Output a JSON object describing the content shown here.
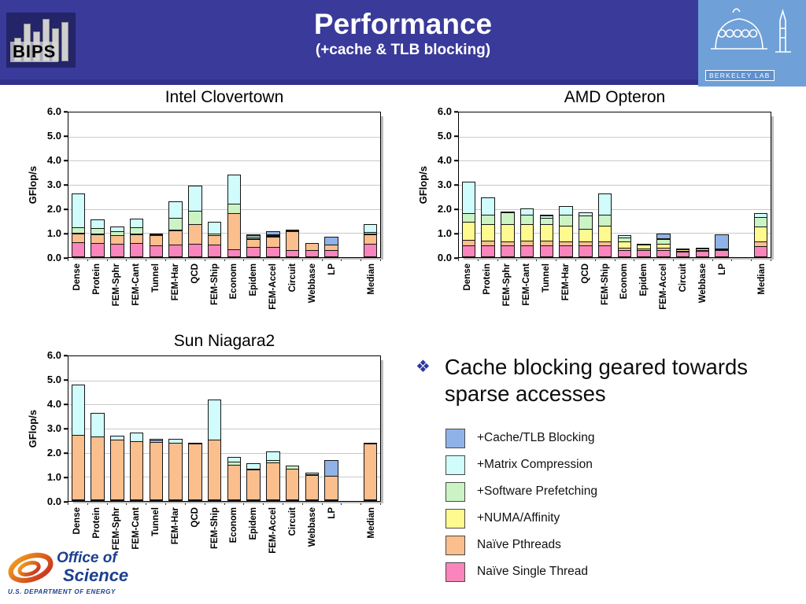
{
  "header": {
    "title": "Performance",
    "subtitle": "(+cache & TLB blocking)",
    "bips_label": "BIPS",
    "berkeley_label": "BERKELEY LAB",
    "bg": "#3a3a9a"
  },
  "bullet": {
    "marker": "❖",
    "text": "Cache blocking geared towards sparse accesses"
  },
  "legend": {
    "items": [
      {
        "label": "+Cache/TLB Blocking",
        "color": "#8FB3E8"
      },
      {
        "label": "+Matrix Compression",
        "color": "#D0FCFB"
      },
      {
        "label": "+Software Prefetching",
        "color": "#CBF3C4"
      },
      {
        "label": "+NUMA/Affinity",
        "color": "#FFFA8F"
      },
      {
        "label": "Naïve Pthreads",
        "color": "#FBBE8D"
      },
      {
        "label": "Naïve Single Thread",
        "color": "#FA85BC"
      }
    ]
  },
  "footer": {
    "office_line1": "Office of",
    "office_line2": "Science",
    "dept": "U.S. DEPARTMENT OF ENERGY"
  },
  "chart_data": [
    {
      "type": "bar",
      "stacked": true,
      "title": "Intel Clovertown",
      "ylabel": "GFlop/s",
      "ylim": [
        0,
        6
      ],
      "grid": true,
      "legend_position": "none",
      "yticks": [
        "6.0",
        "5.0",
        "4.0",
        "3.0",
        "2.0",
        "1.0",
        "0.0"
      ],
      "categories": [
        "Dense",
        "Protein",
        "FEM-Sphr",
        "FEM-Cant",
        "Tunnel",
        "FEM-Har",
        "QCD",
        "FEM-Ship",
        "Econom",
        "Epidem",
        "FEM-Accel",
        "Circuit",
        "Webbase",
        "LP",
        "Median"
      ],
      "gap_before_category": "Median",
      "series_note": "values are stacked segment sizes in GFlop/s, listed bottom-to-top",
      "series": [
        {
          "name": "Naïve Single Thread",
          "color": "#FA85BC",
          "values": [
            0.6,
            0.58,
            0.55,
            0.58,
            0.5,
            0.52,
            0.55,
            0.52,
            0.32,
            0.42,
            0.42,
            0.3,
            0.28,
            0.3,
            0.55
          ]
        },
        {
          "name": "Naïve Pthreads",
          "color": "#FBBE8D",
          "values": [
            0.42,
            0.42,
            0.4,
            0.42,
            0.45,
            0.63,
            0.85,
            0.43,
            1.53,
            0.38,
            0.48,
            0.8,
            0.34,
            0.25,
            0.45
          ]
        },
        {
          "name": "+NUMA/Affinity",
          "color": "#FFFA8F",
          "values": [
            0.04,
            0.02,
            0.02,
            0.02,
            0.02,
            0.04,
            0.02,
            0.03,
            0.02,
            0.03,
            0.04,
            0.02,
            0.0,
            0.0,
            0.03
          ]
        },
        {
          "name": "+Software Prefetching",
          "color": "#CBF3C4",
          "values": [
            0.28,
            0.28,
            0.2,
            0.3,
            0.08,
            0.56,
            0.58,
            0.1,
            0.43,
            0.12,
            0.09,
            0.03,
            0.0,
            0.0,
            0.1
          ]
        },
        {
          "name": "+Matrix Compression",
          "color": "#D0FCFB",
          "values": [
            1.45,
            0.4,
            0.23,
            0.41,
            0.08,
            0.7,
            1.1,
            0.52,
            1.25,
            0.1,
            0.07,
            0.05,
            0.02,
            0.0,
            0.38
          ]
        },
        {
          "name": "+Cache/TLB Blocking",
          "color": "#8FB3E8",
          "values": [
            0.0,
            0.0,
            0.0,
            0.0,
            0.0,
            0.0,
            0.0,
            0.0,
            0.0,
            0.1,
            0.17,
            0.02,
            0.0,
            0.4,
            0.0
          ]
        }
      ]
    },
    {
      "type": "bar",
      "stacked": true,
      "title": "AMD Opteron",
      "ylabel": "GFlop/s",
      "ylim": [
        0,
        6
      ],
      "grid": true,
      "legend_position": "none",
      "yticks": [
        "6.0",
        "5.0",
        "4.0",
        "3.0",
        "2.0",
        "1.0",
        "0.0"
      ],
      "categories": [
        "Dense",
        "Protein",
        "FEM-Sphr",
        "FEM-Cant",
        "Tunnel",
        "FEM-Har",
        "QCD",
        "FEM-Ship",
        "Econom",
        "Epidem",
        "FEM-Accel",
        "Circuit",
        "Webbase",
        "LP",
        "Median"
      ],
      "gap_before_category": "Median",
      "series_note": "values are stacked segment sizes in GFlop/s, listed bottom-to-top",
      "series": [
        {
          "name": "Naïve Single Thread",
          "color": "#FA85BC",
          "values": [
            0.5,
            0.5,
            0.5,
            0.5,
            0.5,
            0.5,
            0.48,
            0.5,
            0.3,
            0.3,
            0.3,
            0.22,
            0.25,
            0.28,
            0.45
          ]
        },
        {
          "name": "Naïve Pthreads",
          "color": "#FBBE8D",
          "values": [
            0.25,
            0.22,
            0.2,
            0.22,
            0.22,
            0.2,
            0.2,
            0.2,
            0.15,
            0.1,
            0.12,
            0.08,
            0.08,
            0.1,
            0.23
          ]
        },
        {
          "name": "+NUMA/Affinity",
          "color": "#FFFA8F",
          "values": [
            0.8,
            0.73,
            0.75,
            0.73,
            0.73,
            0.7,
            0.57,
            0.7,
            0.3,
            0.22,
            0.23,
            0.12,
            0.12,
            0.04,
            0.67
          ]
        },
        {
          "name": "+Software Prefetching",
          "color": "#CBF3C4",
          "values": [
            0.4,
            0.45,
            0.55,
            0.45,
            0.3,
            0.5,
            0.6,
            0.5,
            0.2,
            0.03,
            0.25,
            0.03,
            0.03,
            0.0,
            0.45
          ]
        },
        {
          "name": "+Matrix Compression",
          "color": "#D0FCFB",
          "values": [
            1.35,
            0.75,
            0.05,
            0.3,
            0.15,
            0.4,
            0.2,
            0.9,
            0.15,
            0.02,
            0.02,
            0.03,
            0.02,
            0.0,
            0.2
          ]
        },
        {
          "name": "+Cache/TLB Blocking",
          "color": "#8FB3E8",
          "values": [
            0.0,
            0.0,
            0.0,
            0.0,
            0.1,
            0.0,
            0.0,
            0.0,
            0.0,
            0.0,
            0.25,
            0.02,
            0.02,
            0.63,
            0.05
          ]
        }
      ]
    },
    {
      "type": "bar",
      "stacked": true,
      "title": "Sun Niagara2",
      "ylabel": "GFlop/s",
      "ylim": [
        0,
        6
      ],
      "grid": true,
      "legend_position": "none",
      "yticks": [
        "6.0",
        "5.0",
        "4.0",
        "3.0",
        "2.0",
        "1.0",
        "0.0"
      ],
      "categories": [
        "Dense",
        "Protein",
        "FEM-Sphr",
        "FEM-Cant",
        "Tunnel",
        "FEM-Har",
        "QCD",
        "FEM-Ship",
        "Econom",
        "Epidem",
        "FEM-Accel",
        "Circuit",
        "Webbase",
        "LP",
        "Median"
      ],
      "gap_before_category": "Median",
      "series_note": "values are stacked segment sizes in GFlop/s, listed bottom-to-top",
      "series": [
        {
          "name": "Naïve Single Thread",
          "color": "#FA85BC",
          "values": [
            0.06,
            0.06,
            0.06,
            0.06,
            0.06,
            0.06,
            0.06,
            0.06,
            0.06,
            0.06,
            0.06,
            0.06,
            0.06,
            0.06,
            0.06
          ]
        },
        {
          "name": "Naïve Pthreads",
          "color": "#FBBE8D",
          "values": [
            2.7,
            2.62,
            2.5,
            2.42,
            2.4,
            2.36,
            2.34,
            2.5,
            1.46,
            1.29,
            1.56,
            1.32,
            1.06,
            1.02,
            2.34
          ]
        },
        {
          "name": "+NUMA/Affinity",
          "color": "#FFFA8F",
          "values": [
            0.0,
            0.0,
            0.0,
            0.0,
            0.0,
            0.0,
            0.0,
            0.0,
            0.0,
            0.0,
            0.0,
            0.0,
            0.0,
            0.0,
            0.0
          ]
        },
        {
          "name": "+Software Prefetching",
          "color": "#CBF3C4",
          "values": [
            0.0,
            0.0,
            0.0,
            0.03,
            0.0,
            0.0,
            0.0,
            0.0,
            0.18,
            0.05,
            0.16,
            0.15,
            0.08,
            0.0,
            0.05
          ]
        },
        {
          "name": "+Matrix Compression",
          "color": "#D0FCFB",
          "values": [
            2.1,
            1.04,
            0.22,
            0.39,
            0.12,
            0.23,
            0.05,
            1.69,
            0.25,
            0.28,
            0.4,
            0.02,
            0.1,
            0.0,
            0.07
          ]
        },
        {
          "name": "+Cache/TLB Blocking",
          "color": "#8FB3E8",
          "values": [
            0.0,
            0.0,
            0.0,
            0.03,
            0.12,
            0.0,
            0.0,
            0.0,
            0.0,
            0.0,
            0.0,
            0.0,
            0.0,
            0.7,
            0.0
          ]
        }
      ]
    }
  ]
}
